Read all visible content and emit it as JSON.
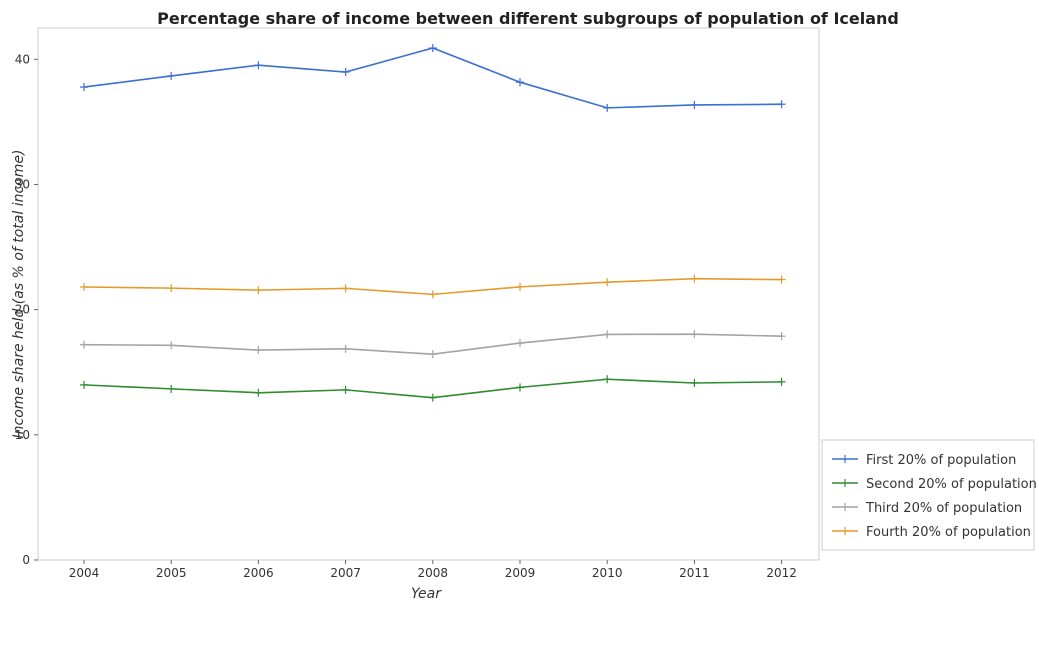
{
  "chart_data": {
    "type": "line",
    "title": "Percentage share of income between different subgroups of population of Iceland",
    "xlabel": "Year",
    "ylabel": "Income share held (as % of total income)",
    "categories": [
      "2004",
      "2005",
      "2006",
      "2007",
      "2008",
      "2009",
      "2010",
      "2011",
      "2012"
    ],
    "ylim": [
      0,
      42.5
    ],
    "yticks": [
      0,
      10,
      20,
      30,
      40
    ],
    "grid": false,
    "legend_position": "bottom-right",
    "series": [
      {
        "name": "First 20% of population",
        "color": "#3a6fd4",
        "values": [
          37.78,
          38.67,
          39.53,
          38.98,
          40.9,
          38.17,
          36.12,
          36.35,
          36.41
        ]
      },
      {
        "name": "Second 20% of population",
        "color": "#2e8b2e",
        "values": [
          13.99,
          13.67,
          13.36,
          13.59,
          12.97,
          13.79,
          14.44,
          14.14,
          14.23
        ]
      },
      {
        "name": "Third 20% of population",
        "color": "#a3a3a3",
        "values": [
          17.2,
          17.15,
          16.77,
          16.87,
          16.44,
          17.33,
          18.02,
          18.04,
          17.88
        ]
      },
      {
        "name": "Fourth 20% of population",
        "color": "#e59a2a",
        "values": [
          21.81,
          21.72,
          21.56,
          21.7,
          21.22,
          21.82,
          22.19,
          22.47,
          22.4
        ]
      }
    ]
  }
}
